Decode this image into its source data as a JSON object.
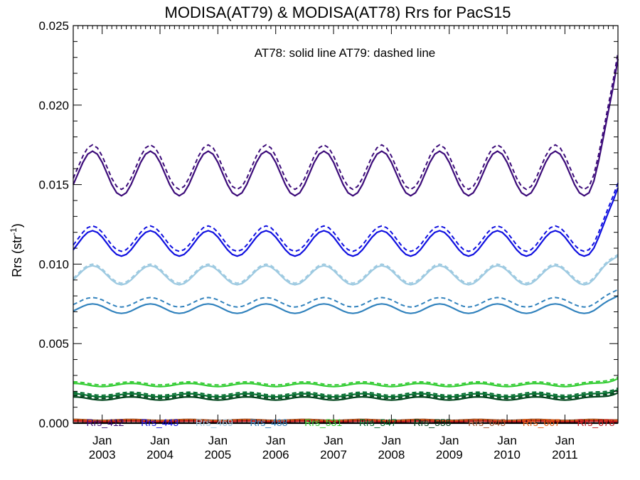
{
  "chart_data": {
    "type": "line",
    "title": "MODISA(AT79) & MODISA(AT78)  Rrs for PacS15",
    "annotation": "AT78: solid line   AT79: dashed line",
    "ylabel_base": "Rrs (str",
    "ylabel_sup": "-1",
    "ylabel_close": ")",
    "xlabel": "",
    "ylim": [
      0,
      0.025
    ],
    "yticks": [
      0.0,
      0.005,
      0.01,
      0.015,
      0.02,
      0.025
    ],
    "ytick_labels": [
      "0.000",
      "0.005",
      "0.010",
      "0.015",
      "0.020",
      "0.025"
    ],
    "xlim": [
      "2002-07",
      "2011-12"
    ],
    "xticks": [
      {
        "month": "Jan",
        "year": "2003"
      },
      {
        "month": "Jan",
        "year": "2004"
      },
      {
        "month": "Jan",
        "year": "2005"
      },
      {
        "month": "Jan",
        "year": "2006"
      },
      {
        "month": "Jan",
        "year": "2007"
      },
      {
        "month": "Jan",
        "year": "2008"
      },
      {
        "month": "Jan",
        "year": "2009"
      },
      {
        "month": "Jan",
        "year": "2010"
      },
      {
        "month": "Jan",
        "year": "2011"
      }
    ],
    "line_styles": {
      "AT78": "solid",
      "AT79": "dashed"
    },
    "series": [
      {
        "name": "Rrs_412",
        "color": "#3d0c7a",
        "seasonal": {
          "base": 0.0157,
          "amp": 0.0014,
          "peak_month": 10
        },
        "late_rise_to": 0.0229,
        "dashed_offset": 0.0004
      },
      {
        "name": "Rrs_443",
        "color": "#1010e0",
        "seasonal": {
          "base": 0.0113,
          "amp": 0.0008,
          "peak_month": 10
        },
        "late_rise_to": 0.0148,
        "dashed_offset": 0.0003
      },
      {
        "name": "Rrs_469",
        "color": "#9ecae1",
        "seasonal": {
          "base": 0.0093,
          "amp": 0.0006,
          "peak_month": 10
        },
        "late_rise_to": 0.0105,
        "dashed_offset": 0.0001
      },
      {
        "name": "Rrs_488",
        "color": "#3182bd",
        "seasonal": {
          "base": 0.0072,
          "amp": 0.0003,
          "peak_month": 10
        },
        "late_rise_to": 0.008,
        "dashed_offset": 0.0004
      },
      {
        "name": "Rrs_531",
        "color": "#33cc33",
        "seasonal": {
          "base": 0.0024,
          "amp": 0.0001,
          "peak_month": 6
        },
        "late_rise_to": 0.0028,
        "dashed_offset": 0.0001
      },
      {
        "name": "Rrs_547",
        "color": "#006d2c",
        "seasonal": {
          "base": 0.00175,
          "amp": 0.0001,
          "peak_month": 6
        },
        "late_rise_to": 0.0021,
        "dashed_offset": 0.0001
      },
      {
        "name": "Rrs_555",
        "color": "#00441b",
        "seasonal": {
          "base": 0.00155,
          "amp": 0.0001,
          "peak_month": 6
        },
        "late_rise_to": 0.0019,
        "dashed_offset": 0.0001
      },
      {
        "name": "Rrs_645",
        "color": "#a0522d",
        "seasonal": {
          "base": 0.0002,
          "amp": 3e-05,
          "peak_month": 6
        },
        "late_rise_to": 0.0002,
        "dashed_offset": 0.0
      },
      {
        "name": "Rrs_667",
        "color": "#e55b0f",
        "seasonal": {
          "base": 0.00015,
          "amp": 3e-05,
          "peak_month": 6
        },
        "late_rise_to": 0.00015,
        "dashed_offset": 0.0
      },
      {
        "name": "Rrs_678",
        "color": "#c0181e",
        "seasonal": {
          "base": 0.0001,
          "amp": 3e-05,
          "peak_month": 6
        },
        "late_rise_to": 0.0001,
        "dashed_offset": 0.0
      }
    ],
    "zero_line": true,
    "grid": false,
    "legend_placement": "bottom-inside"
  }
}
